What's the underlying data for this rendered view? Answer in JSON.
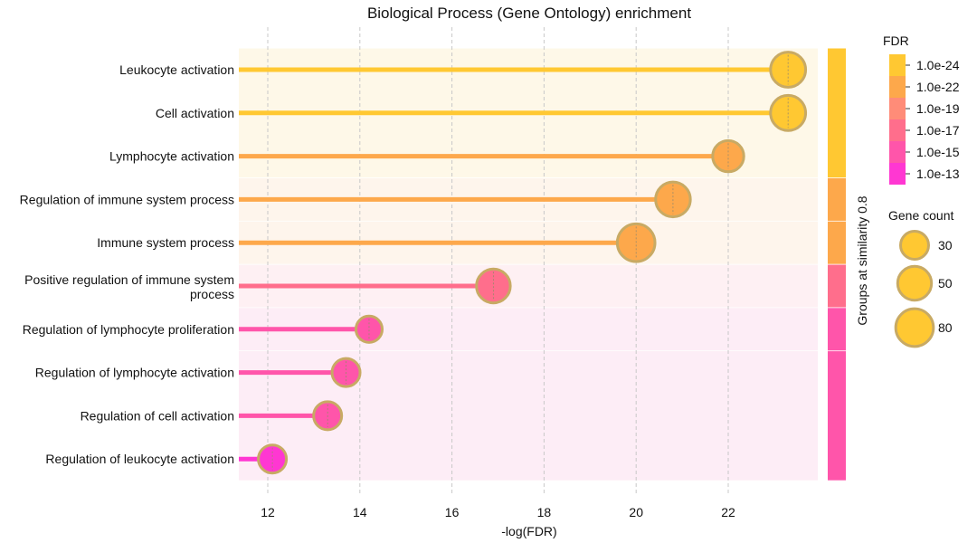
{
  "chart_data": {
    "type": "lollipop",
    "title": "Biological Process (Gene Ontology) enrichment",
    "xlabel": "-log(FDR)",
    "xlim": [
      11.4,
      24.0
    ],
    "xticks": [
      12,
      14,
      16,
      18,
      20,
      22
    ],
    "categories": [
      "Leukocyte activation",
      "Cell activation",
      "Lymphocyte activation",
      "Regulation of immune system process",
      "Immune system process",
      "Positive regulation of immune system process",
      "Regulation of lymphocyte proliferation",
      "Regulation of lymphocyte activation",
      "Regulation of cell activation",
      "Regulation of leukocyte activation"
    ],
    "category_lines": [
      [
        "Leukocyte activation"
      ],
      [
        "Cell activation"
      ],
      [
        "Lymphocyte activation"
      ],
      [
        "Regulation of immune system process"
      ],
      [
        "Immune system process"
      ],
      [
        "Positive regulation of immune system",
        "process"
      ],
      [
        "Regulation of lymphocyte proliferation"
      ],
      [
        "Regulation of lymphocyte activation"
      ],
      [
        "Regulation of cell activation"
      ],
      [
        "Regulation of leukocyte activation"
      ]
    ],
    "values": [
      23.3,
      23.3,
      22.0,
      20.8,
      20.0,
      16.9,
      14.2,
      13.7,
      13.3,
      12.1
    ],
    "gene_counts": [
      55,
      55,
      40,
      65,
      80,
      50,
      25,
      30,
      30,
      30
    ],
    "point_colors": [
      "#FFC832",
      "#FFC832",
      "#FDA84B",
      "#FDA84B",
      "#FDA84B",
      "#FF6E8C",
      "#FF55AA",
      "#FF55AA",
      "#FF55AA",
      "#FF37D2"
    ],
    "line_colors": [
      "#FFC832",
      "#FFC832",
      "#FDA84B",
      "#FDA84B",
      "#FDA84B",
      "#FF6E8C",
      "#FF55AA",
      "#FF55AA",
      "#FF55AA",
      "#FF37D2"
    ],
    "groups": [
      {
        "rows": [
          0,
          1,
          2
        ],
        "color": "#FFC832",
        "bg": "#FEF8E8"
      },
      {
        "rows": [
          3
        ],
        "color": "#FDA84B",
        "bg": "#FEF5EC"
      },
      {
        "rows": [
          4
        ],
        "color": "#FDA84B",
        "bg": "#FEF5EC"
      },
      {
        "rows": [
          5
        ],
        "color": "#FF6E8C",
        "bg": "#FEF0F3"
      },
      {
        "rows": [
          6
        ],
        "color": "#FF55AA",
        "bg": "#FDEDF6"
      },
      {
        "rows": [
          7,
          8,
          9
        ],
        "color": "#FF55AA",
        "bg": "#FDEDF6"
      }
    ],
    "group_axis_label": "Groups at similarity 0.8",
    "fdr_legend": {
      "title": "FDR",
      "entries": [
        {
          "label": "1.0e-24",
          "color": "#FFC832"
        },
        {
          "label": "1.0e-22",
          "color": "#FDA84B"
        },
        {
          "label": "1.0e-19",
          "color": "#FF8C78"
        },
        {
          "label": "1.0e-17",
          "color": "#FF6E8C"
        },
        {
          "label": "1.0e-15",
          "color": "#FF55AA"
        },
        {
          "label": "1.0e-13",
          "color": "#FF37D2"
        }
      ]
    },
    "size_legend": {
      "title": "Gene count",
      "entries": [
        30,
        50,
        80
      ],
      "color": "#FFC832",
      "edge": "#C8AA64"
    },
    "marker_edge_color": "#C8AA64",
    "grid": true
  }
}
